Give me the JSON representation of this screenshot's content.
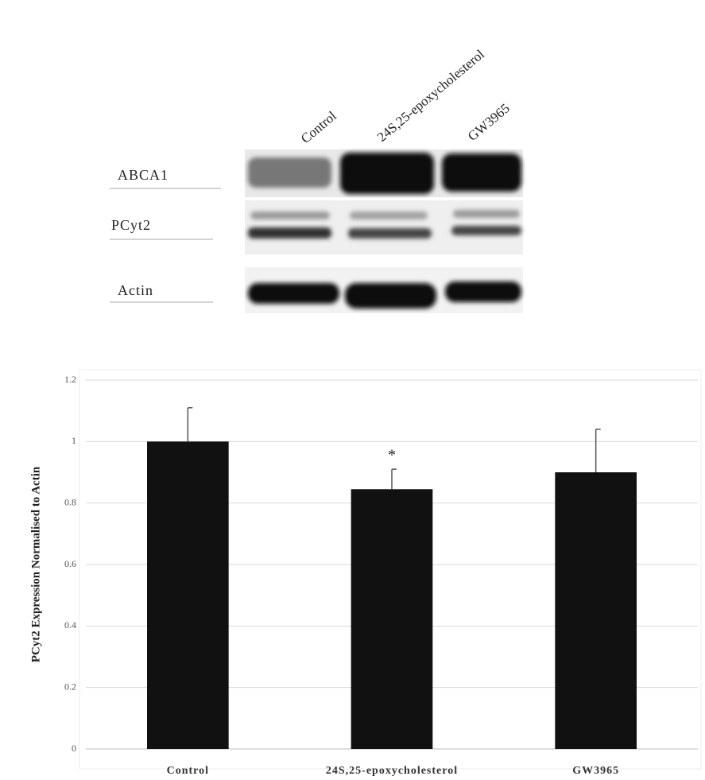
{
  "blot": {
    "lanes": [
      "Control",
      "24S,25-epoxycholesterol",
      "GW3965"
    ],
    "rows": [
      "ABCA1",
      "PCyt2",
      "Actin"
    ]
  },
  "chart_data": {
    "type": "bar",
    "ylabel": "PCyt2 Expression Normalised to Actin",
    "categories": [
      "Control",
      "24S,25-epoxycholesterol",
      "GW3965"
    ],
    "values": [
      1.0,
      0.845,
      0.9
    ],
    "errors": [
      0.11,
      0.065,
      0.14
    ],
    "color": "#111111",
    "annotations": [
      {
        "text": "*",
        "category": 1
      }
    ],
    "ylim": [
      0,
      1.2
    ],
    "yticks": [
      0,
      0.2,
      0.4,
      0.6,
      0.8,
      1,
      1.2
    ],
    "grid": true
  }
}
